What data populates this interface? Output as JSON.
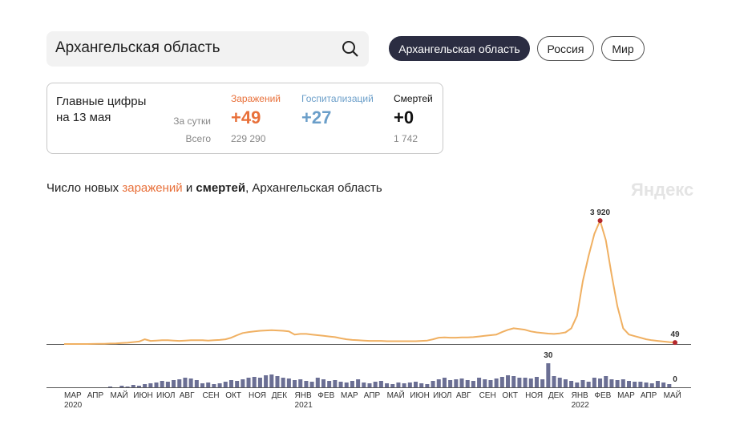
{
  "header": {
    "search": "Архангельская область",
    "tabs": [
      "Архангельская область",
      "Россия",
      "Мир"
    ]
  },
  "summary": {
    "title_line1": "Главные цифры",
    "title_line2": "на 13 мая",
    "row_labels": [
      "За сутки",
      "Всего"
    ],
    "columns": [
      {
        "name": "Заражений",
        "daily": "+49",
        "total": "229 290"
      },
      {
        "name": "Госпитализаций",
        "daily": "+27"
      },
      {
        "name": "Смертей",
        "daily": "+0",
        "total": "1 742"
      }
    ]
  },
  "chart_title": {
    "parts": [
      "Число новых ",
      "заражений",
      " и ",
      "смертей",
      ", Архангельская область"
    ]
  },
  "watermark": "Яндекс",
  "chart_data": [
    {
      "type": "line",
      "color": "#f0b062",
      "ylim": [
        0,
        4000
      ],
      "values": [
        0,
        0,
        0,
        0,
        1,
        2,
        5,
        8,
        15,
        20,
        30,
        40,
        60,
        80,
        150,
        100,
        110,
        120,
        120,
        110,
        100,
        110,
        120,
        120,
        120,
        110,
        120,
        130,
        150,
        200,
        280,
        350,
        380,
        400,
        420,
        430,
        440,
        430,
        420,
        400,
        300,
        320,
        320,
        300,
        280,
        260,
        240,
        220,
        180,
        150,
        130,
        120,
        110,
        100,
        100,
        100,
        90,
        90,
        90,
        90,
        90,
        90,
        100,
        110,
        150,
        200,
        210,
        200,
        200,
        210,
        210,
        220,
        240,
        260,
        280,
        300,
        380,
        450,
        500,
        480,
        450,
        400,
        370,
        350,
        330,
        320,
        340,
        370,
        500,
        900,
        2000,
        2800,
        3500,
        3920,
        3300,
        2200,
        1200,
        500,
        300,
        250,
        200,
        150,
        120,
        100,
        80,
        60,
        49
      ],
      "value_labels": [
        null,
        null,
        null,
        null,
        null,
        null,
        null,
        null,
        null,
        null,
        null,
        null,
        null,
        null,
        null,
        null,
        null,
        null,
        null,
        null,
        null,
        null,
        null,
        null,
        null,
        null,
        null,
        null,
        null,
        null,
        null,
        null,
        null,
        null,
        null,
        null,
        null,
        null,
        null,
        null,
        null,
        null,
        null,
        null,
        null,
        null,
        null,
        null,
        null,
        null,
        null,
        null,
        null,
        null,
        null,
        null,
        null,
        null,
        null,
        null,
        null,
        null,
        null,
        null,
        null,
        null,
        null,
        null,
        null,
        null,
        null,
        null,
        null,
        null,
        null,
        null,
        null,
        null,
        null,
        null,
        null,
        null,
        null,
        null,
        null,
        null,
        null,
        null,
        null,
        null,
        null,
        null,
        null,
        "3 920",
        null,
        null,
        null,
        null,
        null,
        null,
        null,
        null,
        null,
        null,
        null,
        null,
        "49"
      ]
    },
    {
      "type": "bar",
      "color": "#6b6f94",
      "ylim": [
        0,
        30
      ],
      "categories": [
        "МАР",
        null,
        null,
        null,
        "АПР",
        null,
        null,
        null,
        "МАЙ",
        null,
        null,
        null,
        "ИЮН",
        null,
        null,
        null,
        "ИЮЛ",
        null,
        null,
        null,
        "АВГ",
        null,
        null,
        null,
        "СЕН",
        null,
        null,
        null,
        "ОКТ",
        null,
        null,
        null,
        "НОЯ",
        null,
        null,
        null,
        "ДЕК",
        null,
        null,
        null,
        "ЯНВ",
        null,
        null,
        null,
        "ФЕВ",
        null,
        null,
        null,
        "МАР",
        null,
        null,
        null,
        "АПР",
        null,
        null,
        null,
        "МАЙ",
        null,
        null,
        null,
        "ИЮН",
        null,
        null,
        null,
        "ИЮЛ",
        null,
        null,
        null,
        "АВГ",
        null,
        null,
        null,
        "СЕН",
        null,
        null,
        null,
        "ОКТ",
        null,
        null,
        null,
        "НОЯ",
        null,
        null,
        null,
        "ДЕК",
        null,
        null,
        null,
        "ЯНВ",
        null,
        null,
        null,
        "ФЕВ",
        null,
        null,
        null,
        "МАР",
        null,
        null,
        null,
        "АПР",
        null,
        null,
        null,
        "МАЙ",
        null,
        null
      ],
      "category_years": [
        "2020",
        null,
        null,
        null,
        null,
        null,
        null,
        null,
        null,
        null,
        null,
        null,
        null,
        null,
        null,
        null,
        null,
        null,
        null,
        null,
        null,
        null,
        null,
        null,
        null,
        null,
        null,
        null,
        null,
        null,
        null,
        null,
        null,
        null,
        null,
        null,
        null,
        null,
        null,
        null,
        "2021",
        null,
        null,
        null,
        null,
        null,
        null,
        null,
        null,
        null,
        null,
        null,
        null,
        null,
        null,
        null,
        null,
        null,
        null,
        null,
        null,
        null,
        null,
        null,
        null,
        null,
        null,
        null,
        null,
        null,
        null,
        null,
        null,
        null,
        null,
        null,
        null,
        null,
        null,
        null,
        null,
        null,
        null,
        null,
        null,
        null,
        null,
        null,
        "2022",
        null,
        null,
        null,
        null,
        null,
        null,
        null,
        null,
        null,
        null,
        null,
        null,
        null,
        null,
        null,
        null,
        null,
        null
      ],
      "values": [
        0,
        0,
        0,
        0,
        0,
        0,
        0,
        0,
        1,
        0,
        2,
        1,
        3,
        2,
        4,
        5,
        6,
        8,
        7,
        9,
        10,
        12,
        11,
        9,
        5,
        6,
        4,
        5,
        7,
        9,
        8,
        10,
        12,
        13,
        12,
        15,
        16,
        14,
        12,
        11,
        9,
        10,
        8,
        7,
        12,
        10,
        8,
        9,
        7,
        6,
        8,
        10,
        6,
        5,
        7,
        8,
        5,
        4,
        6,
        5,
        6,
        7,
        5,
        4,
        8,
        10,
        12,
        9,
        10,
        11,
        9,
        8,
        12,
        10,
        9,
        11,
        13,
        15,
        14,
        12,
        12,
        11,
        13,
        10,
        30,
        14,
        12,
        10,
        8,
        6,
        9,
        7,
        12,
        11,
        14,
        10,
        9,
        10,
        8,
        7,
        7,
        6,
        5,
        8,
        6,
        4,
        0
      ]
    }
  ]
}
